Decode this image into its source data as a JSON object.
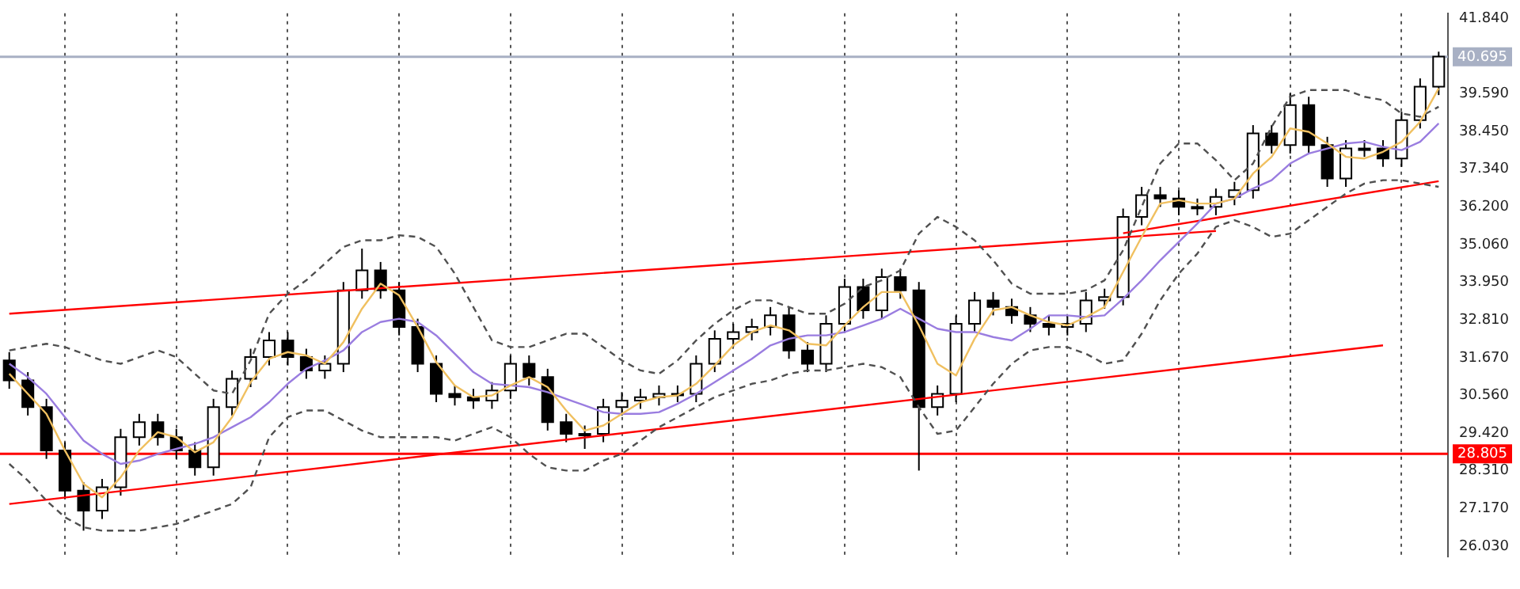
{
  "chart_data": {
    "type": "candlestick",
    "categories": [
      null,
      null,
      null,
      null,
      null,
      null,
      null,
      null,
      null,
      null,
      null,
      null,
      null,
      null,
      null,
      null,
      null,
      null,
      null,
      null,
      null,
      null,
      null,
      null,
      null,
      null,
      null,
      null,
      null,
      null,
      null,
      null,
      null,
      null,
      null,
      null,
      null,
      null,
      null,
      null,
      null,
      null,
      null,
      null,
      null,
      null,
      null,
      null,
      null,
      null,
      null,
      null,
      null,
      null,
      null,
      null,
      null,
      null,
      null,
      null,
      null,
      null,
      null,
      null,
      null,
      null,
      null,
      null,
      null,
      null,
      null,
      null,
      null,
      null,
      null,
      null,
      null,
      null
    ],
    "ohlc": [
      [
        31.6,
        31.85,
        30.75,
        31.0
      ],
      [
        31.0,
        31.25,
        29.95,
        30.2
      ],
      [
        30.2,
        30.45,
        28.65,
        28.9
      ],
      [
        28.9,
        29.15,
        27.45,
        27.7
      ],
      [
        27.7,
        27.95,
        26.5,
        27.1
      ],
      [
        27.1,
        28.05,
        26.85,
        27.8
      ],
      [
        27.8,
        29.55,
        27.55,
        29.3
      ],
      [
        29.3,
        30.0,
        29.05,
        29.75
      ],
      [
        29.75,
        30.0,
        29.05,
        29.3
      ],
      [
        29.3,
        29.55,
        28.65,
        28.9
      ],
      [
        28.9,
        29.15,
        28.15,
        28.4
      ],
      [
        28.4,
        30.45,
        28.15,
        30.2
      ],
      [
        30.2,
        31.3,
        29.95,
        31.05
      ],
      [
        31.05,
        31.95,
        30.8,
        31.7
      ],
      [
        31.7,
        32.45,
        31.45,
        32.2
      ],
      [
        32.2,
        32.45,
        31.45,
        31.7
      ],
      [
        31.7,
        31.95,
        31.05,
        31.3
      ],
      [
        31.3,
        31.75,
        31.05,
        31.5
      ],
      [
        31.5,
        33.95,
        31.25,
        33.7
      ],
      [
        33.7,
        34.95,
        33.45,
        34.3
      ],
      [
        34.3,
        34.55,
        33.45,
        33.7
      ],
      [
        33.7,
        33.95,
        32.35,
        32.6
      ],
      [
        32.6,
        32.85,
        31.25,
        31.5
      ],
      [
        31.5,
        31.75,
        30.35,
        30.6
      ],
      [
        30.6,
        30.85,
        30.25,
        30.5
      ],
      [
        30.5,
        30.75,
        30.15,
        30.4
      ],
      [
        30.4,
        30.95,
        30.15,
        30.7
      ],
      [
        30.7,
        31.75,
        30.45,
        31.5
      ],
      [
        31.5,
        31.75,
        30.85,
        31.1
      ],
      [
        31.1,
        31.35,
        29.5,
        29.75
      ],
      [
        29.75,
        30.0,
        29.15,
        29.4
      ],
      [
        29.4,
        29.65,
        28.95,
        29.4
      ],
      [
        29.4,
        30.45,
        29.15,
        30.2
      ],
      [
        30.2,
        30.65,
        29.95,
        30.4
      ],
      [
        30.4,
        30.75,
        30.15,
        30.5
      ],
      [
        30.5,
        30.85,
        30.25,
        30.6
      ],
      [
        30.6,
        30.85,
        30.35,
        30.6
      ],
      [
        30.6,
        31.75,
        30.35,
        31.5
      ],
      [
        31.5,
        32.5,
        31.25,
        32.25
      ],
      [
        32.25,
        32.7,
        32.0,
        32.45
      ],
      [
        32.45,
        32.85,
        32.2,
        32.6
      ],
      [
        32.6,
        33.2,
        32.35,
        32.95
      ],
      [
        32.95,
        33.2,
        31.65,
        31.9
      ],
      [
        31.9,
        32.15,
        31.25,
        31.5
      ],
      [
        31.5,
        32.95,
        31.25,
        32.7
      ],
      [
        32.7,
        34.05,
        32.45,
        33.8
      ],
      [
        33.8,
        34.05,
        32.85,
        33.1
      ],
      [
        33.1,
        34.35,
        32.85,
        34.1
      ],
      [
        34.1,
        34.35,
        33.45,
        33.7
      ],
      [
        33.7,
        33.95,
        28.3,
        30.2
      ],
      [
        30.2,
        30.85,
        29.95,
        30.6
      ],
      [
        30.6,
        32.95,
        30.35,
        32.7
      ],
      [
        32.7,
        33.65,
        32.45,
        33.4
      ],
      [
        33.4,
        33.65,
        32.95,
        33.2
      ],
      [
        33.2,
        33.45,
        32.7,
        32.95
      ],
      [
        32.95,
        33.2,
        32.45,
        32.7
      ],
      [
        32.7,
        32.95,
        32.35,
        32.6
      ],
      [
        32.6,
        32.95,
        32.35,
        32.7
      ],
      [
        32.7,
        33.65,
        32.45,
        33.4
      ],
      [
        33.4,
        33.75,
        33.15,
        33.5
      ],
      [
        33.5,
        36.15,
        33.25,
        35.9
      ],
      [
        35.9,
        36.8,
        35.65,
        36.55
      ],
      [
        36.55,
        36.8,
        36.2,
        36.45
      ],
      [
        36.45,
        36.7,
        35.95,
        36.2
      ],
      [
        36.2,
        36.45,
        35.95,
        36.2
      ],
      [
        36.2,
        36.75,
        35.95,
        36.5
      ],
      [
        36.5,
        36.95,
        36.25,
        36.7
      ],
      [
        36.7,
        38.65,
        36.45,
        38.4
      ],
      [
        38.4,
        38.65,
        37.8,
        38.05
      ],
      [
        38.05,
        39.6,
        37.8,
        39.25
      ],
      [
        39.25,
        39.5,
        37.8,
        38.05
      ],
      [
        38.05,
        38.3,
        36.8,
        37.05
      ],
      [
        37.05,
        38.2,
        36.8,
        37.95
      ],
      [
        37.95,
        38.2,
        37.7,
        37.95
      ],
      [
        37.95,
        38.2,
        37.4,
        37.65
      ],
      [
        37.65,
        39.05,
        37.4,
        38.8
      ],
      [
        38.8,
        40.05,
        38.55,
        39.8
      ],
      [
        39.8,
        40.85,
        39.55,
        40.7
      ]
    ],
    "series": [
      {
        "type": "line",
        "color": "#f0c060",
        "values": [
          31.2,
          30.6,
          30.0,
          28.9,
          27.9,
          27.5,
          28.1,
          28.9,
          29.45,
          29.3,
          28.85,
          29.15,
          29.9,
          30.95,
          31.65,
          31.85,
          31.75,
          31.5,
          32.15,
          33.15,
          33.9,
          33.55,
          32.6,
          31.55,
          30.85,
          30.5,
          30.55,
          30.85,
          31.1,
          30.8,
          30.1,
          29.5,
          29.65,
          30.0,
          30.35,
          30.5,
          30.55,
          30.9,
          31.45,
          32.05,
          32.45,
          32.65,
          32.5,
          32.1,
          32.05,
          32.65,
          33.2,
          33.65,
          33.65,
          32.65,
          31.5,
          31.15,
          32.25,
          33.1,
          33.2,
          32.95,
          32.75,
          32.65,
          32.9,
          33.2,
          34.25,
          35.3,
          36.3,
          36.4,
          36.3,
          36.3,
          36.45,
          37.2,
          37.7,
          38.55,
          38.45,
          38.1,
          37.7,
          37.65,
          37.85,
          38.15,
          38.75,
          39.75
        ]
      },
      {
        "type": "line",
        "color": "#9a7de0",
        "values": [
          31.5,
          31.1,
          30.6,
          29.9,
          29.2,
          28.8,
          28.5,
          28.6,
          28.8,
          28.95,
          29.1,
          29.3,
          29.6,
          29.9,
          30.35,
          30.9,
          31.35,
          31.6,
          31.9,
          32.45,
          32.75,
          32.85,
          32.75,
          32.35,
          31.8,
          31.25,
          30.9,
          30.85,
          30.8,
          30.65,
          30.45,
          30.25,
          30.05,
          30.0,
          30.0,
          30.05,
          30.3,
          30.6,
          30.95,
          31.3,
          31.65,
          32.05,
          32.25,
          32.35,
          32.35,
          32.45,
          32.65,
          32.85,
          33.15,
          32.85,
          32.55,
          32.45,
          32.45,
          32.3,
          32.2,
          32.55,
          32.95,
          32.95,
          32.9,
          32.95,
          33.45,
          34.0,
          34.6,
          35.15,
          35.7,
          36.3,
          36.45,
          36.75,
          37.0,
          37.5,
          37.8,
          37.95,
          38.1,
          38.15,
          38.0,
          37.9,
          38.15,
          38.7
        ]
      },
      {
        "type": "line",
        "color": "#505050",
        "line_style": "dashed",
        "values": [
          31.9,
          32.0,
          32.1,
          32.0,
          31.8,
          31.6,
          31.5,
          31.7,
          31.9,
          31.7,
          31.2,
          30.7,
          30.6,
          31.6,
          33.0,
          33.6,
          34.0,
          34.5,
          35.0,
          35.2,
          35.2,
          35.35,
          35.3,
          35.0,
          34.2,
          33.2,
          32.2,
          32.0,
          32.0,
          32.2,
          32.4,
          32.4,
          32.0,
          31.6,
          31.3,
          31.2,
          31.6,
          32.2,
          32.7,
          33.1,
          33.4,
          33.4,
          33.2,
          33.0,
          33.0,
          33.3,
          33.8,
          34.0,
          34.3,
          35.4,
          35.9,
          35.6,
          35.2,
          34.6,
          33.9,
          33.6,
          33.6,
          33.6,
          33.7,
          34.0,
          34.9,
          36.2,
          37.5,
          38.1,
          38.1,
          37.6,
          37.0,
          37.5,
          38.6,
          39.5,
          39.7,
          39.7,
          39.7,
          39.5,
          39.4,
          39.0,
          38.9,
          39.2
        ]
      },
      {
        "type": "line",
        "color": "#505050",
        "line_style": "dashed",
        "values": [
          28.5,
          28.0,
          27.4,
          26.9,
          26.6,
          26.5,
          26.5,
          26.5,
          26.6,
          26.7,
          26.9,
          27.1,
          27.3,
          27.8,
          29.3,
          29.9,
          30.1,
          30.1,
          29.8,
          29.5,
          29.3,
          29.3,
          29.3,
          29.3,
          29.2,
          29.4,
          29.6,
          29.3,
          28.8,
          28.4,
          28.3,
          28.3,
          28.6,
          28.8,
          29.2,
          29.6,
          29.9,
          30.2,
          30.5,
          30.7,
          30.9,
          31.0,
          31.2,
          31.3,
          31.3,
          31.4,
          31.5,
          31.4,
          31.1,
          30.2,
          29.4,
          29.5,
          30.2,
          30.9,
          31.5,
          31.9,
          32.0,
          32.0,
          31.8,
          31.5,
          31.6,
          32.4,
          33.4,
          34.2,
          34.8,
          35.6,
          35.8,
          35.6,
          35.3,
          35.4,
          35.8,
          36.2,
          36.6,
          36.9,
          37.0,
          37.0,
          36.9,
          36.8
        ]
      },
      {
        "type": "line",
        "color": "#ff0000",
        "values": [
          33.0,
          null,
          null,
          null,
          null,
          null,
          null,
          null,
          null,
          null,
          null,
          null,
          null,
          null,
          null,
          null,
          null,
          null,
          null,
          null,
          null,
          null,
          null,
          null,
          null,
          null,
          null,
          null,
          null,
          null,
          null,
          null,
          null,
          null,
          null,
          null,
          null,
          null,
          null,
          null,
          null,
          null,
          null,
          null,
          null,
          null,
          null,
          null,
          null,
          null,
          null,
          null,
          null,
          null,
          null,
          null,
          null,
          null,
          null,
          null,
          null,
          null,
          null,
          null,
          null,
          35.48,
          null,
          null,
          null,
          null,
          null,
          null,
          null,
          null,
          null,
          null,
          null,
          null
        ]
      },
      {
        "type": "line",
        "color": "#ff0000",
        "values": [
          null,
          null,
          null,
          null,
          null,
          null,
          null,
          null,
          null,
          null,
          null,
          null,
          null,
          null,
          null,
          null,
          null,
          null,
          null,
          null,
          null,
          null,
          null,
          null,
          null,
          null,
          null,
          null,
          null,
          null,
          null,
          null,
          null,
          null,
          null,
          null,
          null,
          null,
          null,
          null,
          null,
          null,
          null,
          null,
          null,
          null,
          null,
          null,
          null,
          null,
          null,
          null,
          null,
          null,
          null,
          null,
          null,
          null,
          null,
          null,
          35.41,
          null,
          null,
          null,
          null,
          null,
          null,
          null,
          null,
          null,
          null,
          null,
          null,
          null,
          null,
          null,
          null,
          36.97
        ]
      },
      {
        "type": "line",
        "color": "#ff0000",
        "values": [
          27.3,
          null,
          null,
          null,
          null,
          null,
          null,
          null,
          null,
          null,
          null,
          null,
          null,
          null,
          null,
          null,
          null,
          null,
          null,
          null,
          null,
          null,
          null,
          null,
          null,
          null,
          null,
          null,
          null,
          null,
          null,
          null,
          null,
          null,
          null,
          null,
          null,
          null,
          null,
          null,
          null,
          null,
          null,
          null,
          null,
          null,
          null,
          null,
          null,
          null,
          null,
          null,
          null,
          null,
          null,
          null,
          null,
          null,
          null,
          null,
          null,
          null,
          null,
          null,
          null,
          null,
          null,
          null,
          null,
          null,
          null,
          null,
          null,
          null,
          32.05,
          null,
          null,
          null
        ]
      }
    ],
    "ylim": [
      25.72,
      42.0
    ],
    "yticks": [
      {
        "value": 41.84,
        "label": "41.840"
      },
      {
        "value": 39.59,
        "label": "39.590"
      },
      {
        "value": 38.45,
        "label": "38.450"
      },
      {
        "value": 37.34,
        "label": "37.340"
      },
      {
        "value": 36.2,
        "label": "36.200"
      },
      {
        "value": 35.06,
        "label": "35.060"
      },
      {
        "value": 33.95,
        "label": "33.950"
      },
      {
        "value": 32.81,
        "label": "32.810"
      },
      {
        "value": 31.67,
        "label": "31.670"
      },
      {
        "value": 30.56,
        "label": "30.560"
      },
      {
        "value": 29.42,
        "label": "29.420"
      },
      {
        "value": 28.31,
        "label": "28.310"
      },
      {
        "value": 27.17,
        "label": "27.170"
      },
      {
        "value": 26.03,
        "label": "26.030"
      }
    ],
    "ref_lines": [
      {
        "axis": "y",
        "value": 40.695,
        "label": "40.695",
        "color": "#a8b0c4"
      },
      {
        "axis": "y",
        "value": 28.805,
        "label": "28.805",
        "color": "#ff0000"
      }
    ],
    "grid": "x",
    "legend": false,
    "marker": "none"
  }
}
